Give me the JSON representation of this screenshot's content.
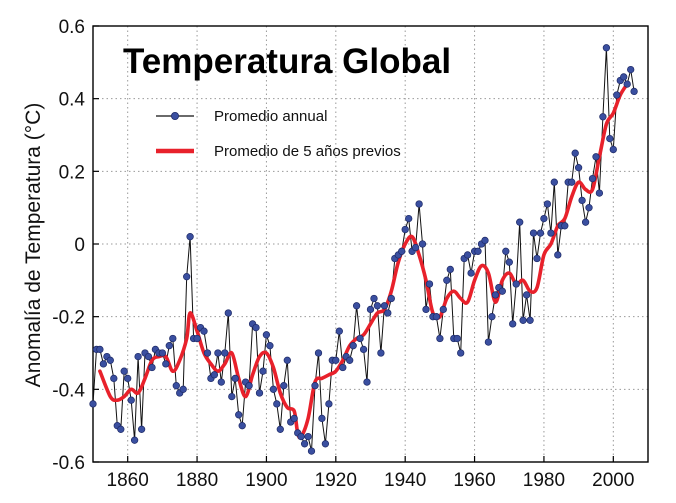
{
  "chart_data": {
    "type": "line",
    "title": "Temperatura Global",
    "xlabel": "",
    "ylabel": "Anomalía de Temperatura (°C)",
    "xlim": [
      1850,
      2010
    ],
    "ylim": [
      -0.6,
      0.6
    ],
    "xticks": [
      1860,
      1880,
      1900,
      1920,
      1940,
      1960,
      1980,
      2000
    ],
    "yticks": [
      0.6,
      0.4,
      0.2,
      0,
      -0.2,
      -0.4,
      -0.6
    ],
    "ytick_labels": [
      "0.6",
      "0.4",
      "0.2",
      "0",
      "-0.2",
      "-0.4",
      "-0.6"
    ],
    "grid": true,
    "legend_position": "top-left",
    "series": [
      {
        "name": "Promedio annual",
        "color": "#3a4fa0",
        "line_color": "#111111",
        "marker": "circle",
        "x": [
          1850,
          1851,
          1852,
          1853,
          1854,
          1855,
          1856,
          1857,
          1858,
          1859,
          1860,
          1861,
          1862,
          1863,
          1864,
          1865,
          1866,
          1867,
          1868,
          1869,
          1870,
          1871,
          1872,
          1873,
          1874,
          1875,
          1876,
          1877,
          1878,
          1879,
          1880,
          1881,
          1882,
          1883,
          1884,
          1885,
          1886,
          1887,
          1888,
          1889,
          1890,
          1891,
          1892,
          1893,
          1894,
          1895,
          1896,
          1897,
          1898,
          1899,
          1900,
          1901,
          1902,
          1903,
          1904,
          1905,
          1906,
          1907,
          1908,
          1909,
          1910,
          1911,
          1912,
          1913,
          1914,
          1915,
          1916,
          1917,
          1918,
          1919,
          1920,
          1921,
          1922,
          1923,
          1924,
          1925,
          1926,
          1927,
          1928,
          1929,
          1930,
          1931,
          1932,
          1933,
          1934,
          1935,
          1936,
          1937,
          1938,
          1939,
          1940,
          1941,
          1942,
          1943,
          1944,
          1945,
          1946,
          1947,
          1948,
          1949,
          1950,
          1951,
          1952,
          1953,
          1954,
          1955,
          1956,
          1957,
          1958,
          1959,
          1960,
          1961,
          1962,
          1963,
          1964,
          1965,
          1966,
          1967,
          1968,
          1969,
          1970,
          1971,
          1972,
          1973,
          1974,
          1975,
          1976,
          1977,
          1978,
          1979,
          1980,
          1981,
          1982,
          1983,
          1984,
          1985,
          1986,
          1987,
          1988,
          1989,
          1990,
          1991,
          1992,
          1993,
          1994,
          1995,
          1996,
          1997,
          1998,
          1999,
          2000,
          2001,
          2002,
          2003,
          2004,
          2005,
          2006
        ],
        "values": [
          -0.44,
          -0.29,
          -0.29,
          -0.33,
          -0.31,
          -0.32,
          -0.37,
          -0.5,
          -0.51,
          -0.35,
          -0.37,
          -0.43,
          -0.54,
          -0.31,
          -0.51,
          -0.3,
          -0.31,
          -0.34,
          -0.29,
          -0.3,
          -0.3,
          -0.33,
          -0.28,
          -0.26,
          -0.39,
          -0.41,
          -0.4,
          -0.09,
          0.02,
          -0.26,
          -0.26,
          -0.23,
          -0.24,
          -0.3,
          -0.37,
          -0.36,
          -0.3,
          -0.38,
          -0.3,
          -0.19,
          -0.42,
          -0.37,
          -0.47,
          -0.5,
          -0.38,
          -0.39,
          -0.22,
          -0.23,
          -0.41,
          -0.35,
          -0.25,
          -0.28,
          -0.4,
          -0.44,
          -0.51,
          -0.39,
          -0.32,
          -0.49,
          -0.48,
          -0.52,
          -0.53,
          -0.55,
          -0.53,
          -0.57,
          -0.39,
          -0.3,
          -0.48,
          -0.55,
          -0.44,
          -0.32,
          -0.32,
          -0.24,
          -0.34,
          -0.31,
          -0.32,
          -0.28,
          -0.17,
          -0.26,
          -0.29,
          -0.38,
          -0.18,
          -0.15,
          -0.17,
          -0.3,
          -0.17,
          -0.19,
          -0.15,
          -0.04,
          -0.03,
          -0.02,
          0.04,
          0.07,
          -0.02,
          -0.01,
          0.11,
          0.0,
          -0.18,
          -0.11,
          -0.2,
          -0.2,
          -0.26,
          -0.18,
          -0.1,
          -0.07,
          -0.26,
          -0.26,
          -0.3,
          -0.04,
          -0.03,
          -0.08,
          -0.02,
          -0.02,
          0.0,
          0.01,
          -0.27,
          -0.2,
          -0.14,
          -0.12,
          -0.13,
          -0.02,
          -0.05,
          -0.22,
          -0.11,
          0.06,
          -0.21,
          -0.14,
          -0.21,
          0.03,
          -0.04,
          0.03,
          0.07,
          0.11,
          0.03,
          0.17,
          -0.03,
          0.05,
          0.05,
          0.17,
          0.17,
          0.25,
          0.21,
          0.12,
          0.06,
          0.1,
          0.18,
          0.24,
          0.14,
          0.35,
          0.54,
          0.29,
          0.26,
          0.41,
          0.45,
          0.46,
          0.44,
          0.48,
          0.42
        ]
      },
      {
        "name": "Promedio de 5 años previos",
        "color": "#e8212b",
        "x": [
          1852,
          1855,
          1857,
          1859,
          1861,
          1863,
          1865,
          1867,
          1869,
          1871,
          1873,
          1875,
          1877,
          1878,
          1880,
          1882,
          1884,
          1886,
          1888,
          1890,
          1892,
          1894,
          1896,
          1898,
          1900,
          1902,
          1904,
          1906,
          1908,
          1909,
          1910,
          1912,
          1914,
          1916,
          1918,
          1920,
          1922,
          1924,
          1926,
          1928,
          1930,
          1932,
          1934,
          1936,
          1938,
          1940,
          1942,
          1944,
          1946,
          1948,
          1950,
          1952,
          1954,
          1956,
          1958,
          1960,
          1962,
          1964,
          1966,
          1968,
          1970,
          1972,
          1974,
          1976,
          1978,
          1980,
          1982,
          1984,
          1986,
          1988,
          1990,
          1992,
          1994,
          1996,
          1998,
          2000,
          2002,
          2004
        ],
        "values": [
          -0.35,
          -0.42,
          -0.43,
          -0.42,
          -0.4,
          -0.41,
          -0.37,
          -0.32,
          -0.31,
          -0.31,
          -0.35,
          -0.32,
          -0.26,
          -0.19,
          -0.24,
          -0.3,
          -0.33,
          -0.35,
          -0.33,
          -0.3,
          -0.37,
          -0.42,
          -0.36,
          -0.31,
          -0.3,
          -0.34,
          -0.41,
          -0.45,
          -0.46,
          -0.52,
          -0.53,
          -0.48,
          -0.38,
          -0.37,
          -0.36,
          -0.35,
          -0.32,
          -0.28,
          -0.26,
          -0.25,
          -0.22,
          -0.19,
          -0.18,
          -0.13,
          -0.05,
          0.0,
          0.02,
          -0.03,
          -0.1,
          -0.19,
          -0.2,
          -0.15,
          -0.13,
          -0.15,
          -0.16,
          -0.1,
          -0.06,
          -0.08,
          -0.16,
          -0.1,
          -0.08,
          -0.11,
          -0.1,
          -0.13,
          -0.12,
          -0.03,
          0.0,
          0.05,
          0.07,
          0.13,
          0.17,
          0.15,
          0.15,
          0.24,
          0.33,
          0.36,
          0.41,
          0.44
        ]
      }
    ]
  }
}
